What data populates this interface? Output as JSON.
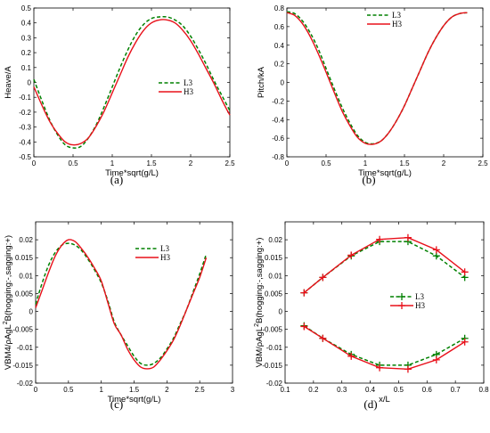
{
  "chart_data": [
    {
      "type": "line",
      "panel_label": "(a)",
      "xlabel": "Time*sqrt(g/L)",
      "ylabel": "Heave/A",
      "xlim": [
        0,
        2.5
      ],
      "ylim": [
        -0.5,
        0.5
      ],
      "xticks": [
        0,
        0.5,
        1,
        1.5,
        2,
        2.5
      ],
      "yticks": [
        -0.5,
        -0.4,
        -0.3,
        -0.2,
        -0.1,
        0,
        0.1,
        0.2,
        0.3,
        0.4,
        0.5
      ],
      "xtick_labels": [
        "0",
        "0.5",
        "1",
        "1.5",
        "2",
        "2.5"
      ],
      "ytick_labels": [
        "-0.5",
        "-0.4",
        "-0.3",
        "-0.2",
        "-0.1",
        "0",
        "0.1",
        "0.2",
        "0.3",
        "0.4",
        "0.5"
      ],
      "grid": false,
      "legend_position": "center-right",
      "series": [
        {
          "name": "L3",
          "color": "#008000",
          "style": "dashed",
          "x": [
            0,
            0.1,
            0.2,
            0.3,
            0.4,
            0.5,
            0.6,
            0.7,
            0.8,
            0.9,
            1.0,
            1.1,
            1.2,
            1.3,
            1.4,
            1.5,
            1.6,
            1.7,
            1.8,
            1.9,
            2.0,
            2.1,
            2.2,
            2.3,
            2.4,
            2.5
          ],
          "y": [
            0.02,
            -0.12,
            -0.25,
            -0.35,
            -0.42,
            -0.44,
            -0.43,
            -0.37,
            -0.28,
            -0.16,
            -0.03,
            0.1,
            0.22,
            0.32,
            0.39,
            0.43,
            0.44,
            0.44,
            0.42,
            0.38,
            0.31,
            0.22,
            0.12,
            0.01,
            -0.09,
            -0.19
          ]
        },
        {
          "name": "H3",
          "color": "#e8101a",
          "style": "solid",
          "x": [
            0,
            0.1,
            0.2,
            0.3,
            0.4,
            0.5,
            0.6,
            0.7,
            0.8,
            0.9,
            1.0,
            1.1,
            1.2,
            1.3,
            1.4,
            1.5,
            1.6,
            1.7,
            1.8,
            1.9,
            2.0,
            2.1,
            2.2,
            2.3,
            2.4,
            2.5
          ],
          "y": [
            -0.03,
            -0.15,
            -0.26,
            -0.34,
            -0.4,
            -0.42,
            -0.41,
            -0.37,
            -0.29,
            -0.19,
            -0.07,
            0.05,
            0.17,
            0.27,
            0.35,
            0.4,
            0.42,
            0.42,
            0.4,
            0.35,
            0.28,
            0.19,
            0.09,
            -0.01,
            -0.12,
            -0.22
          ]
        }
      ]
    },
    {
      "type": "line",
      "panel_label": "(b)",
      "xlabel": "Time*sqrt(g/L)",
      "ylabel": "Pitch/kA",
      "xlim": [
        0,
        2.5
      ],
      "ylim": [
        -0.8,
        0.8
      ],
      "xticks": [
        0,
        0.5,
        1,
        1.5,
        2,
        2.5
      ],
      "yticks": [
        -0.8,
        -0.6,
        -0.4,
        -0.2,
        0,
        0.2,
        0.4,
        0.6,
        0.8
      ],
      "xtick_labels": [
        "0",
        "0.5",
        "1",
        "1.5",
        "2",
        "2.5"
      ],
      "ytick_labels": [
        "-0.8",
        "-0.6",
        "-0.4",
        "-0.2",
        "0",
        "0.2",
        "0.4",
        "0.6",
        "0.8"
      ],
      "grid": false,
      "legend_position": "top-center",
      "series": [
        {
          "name": "L3",
          "color": "#008000",
          "style": "dashed",
          "x": [
            0,
            0.1,
            0.2,
            0.3,
            0.4,
            0.5,
            0.6,
            0.7,
            0.8,
            0.9,
            1.0,
            1.1,
            1.2,
            1.3,
            1.4,
            1.5,
            1.6,
            1.7,
            1.8,
            1.9,
            2.0,
            2.1,
            2.2,
            2.3
          ],
          "y": [
            0.76,
            0.74,
            0.66,
            0.53,
            0.36,
            0.15,
            -0.06,
            -0.26,
            -0.43,
            -0.57,
            -0.645,
            -0.66,
            -0.63,
            -0.54,
            -0.41,
            -0.25,
            -0.06,
            0.13,
            0.32,
            0.48,
            0.61,
            0.7,
            0.74,
            0.75
          ]
        },
        {
          "name": "H3",
          "color": "#e8101a",
          "style": "solid",
          "x": [
            0,
            0.1,
            0.2,
            0.3,
            0.4,
            0.5,
            0.6,
            0.7,
            0.8,
            0.9,
            1.0,
            1.1,
            1.2,
            1.3,
            1.4,
            1.5,
            1.6,
            1.7,
            1.8,
            1.9,
            2.0,
            2.1,
            2.2,
            2.3
          ],
          "y": [
            0.75,
            0.72,
            0.63,
            0.49,
            0.31,
            0.11,
            -0.1,
            -0.3,
            -0.46,
            -0.59,
            -0.655,
            -0.665,
            -0.63,
            -0.54,
            -0.41,
            -0.25,
            -0.06,
            0.13,
            0.32,
            0.48,
            0.61,
            0.7,
            0.74,
            0.75
          ]
        }
      ]
    },
    {
      "type": "line",
      "panel_label": "(c)",
      "xlabel": "Time*sqrt(g/L)",
      "ylabel_parts": [
        "VBM4/ρAgL",
        "2",
        "B(hogging:-,sagging:+)"
      ],
      "xlim": [
        0,
        3
      ],
      "ylim": [
        -0.02,
        0.025
      ],
      "xticks": [
        0,
        0.5,
        1,
        1.5,
        2,
        2.5,
        3
      ],
      "yticks": [
        -0.02,
        -0.015,
        -0.01,
        -0.005,
        0,
        0.005,
        0.01,
        0.015,
        0.02
      ],
      "xtick_labels": [
        "0",
        "0.5",
        "1",
        "1.5",
        "2",
        "2.5",
        "3"
      ],
      "ytick_labels": [
        "-0.02",
        "-0.015",
        "-0.01",
        "-0.005",
        "0",
        "0.005",
        "0.01",
        "0.015",
        "0.02"
      ],
      "grid": false,
      "legend_position": "top-right",
      "series": [
        {
          "name": "L3",
          "color": "#008000",
          "style": "dashed",
          "x": [
            0,
            0.1,
            0.2,
            0.3,
            0.4,
            0.5,
            0.6,
            0.7,
            0.8,
            0.9,
            1.0,
            1.1,
            1.2,
            1.3,
            1.4,
            1.5,
            1.6,
            1.7,
            1.8,
            1.9,
            2.0,
            2.1,
            2.2,
            2.3,
            2.4,
            2.5,
            2.6
          ],
          "y": [
            0.002,
            0.008,
            0.013,
            0.0165,
            0.0185,
            0.019,
            0.0185,
            0.017,
            0.0145,
            0.0115,
            0.008,
            0.003,
            -0.003,
            -0.0065,
            -0.0095,
            -0.0125,
            -0.0145,
            -0.015,
            -0.0145,
            -0.013,
            -0.0105,
            -0.0075,
            -0.0035,
            0.0005,
            0.0055,
            0.0105,
            0.016
          ]
        },
        {
          "name": "H3",
          "color": "#e8101a",
          "style": "solid",
          "x": [
            0,
            0.1,
            0.2,
            0.3,
            0.4,
            0.5,
            0.6,
            0.7,
            0.8,
            0.9,
            1.0,
            1.1,
            1.2,
            1.3,
            1.4,
            1.5,
            1.6,
            1.7,
            1.8,
            1.9,
            2.0,
            2.1,
            2.2,
            2.3,
            2.4,
            2.5,
            2.6
          ],
          "y": [
            0.001,
            0.006,
            0.011,
            0.0155,
            0.0185,
            0.02,
            0.0195,
            0.0175,
            0.015,
            0.012,
            0.0085,
            0.0025,
            -0.0035,
            -0.0065,
            -0.0105,
            -0.0135,
            -0.0155,
            -0.016,
            -0.0155,
            -0.0135,
            -0.011,
            -0.008,
            -0.004,
            0.0005,
            0.005,
            0.0095,
            0.015
          ]
        }
      ]
    },
    {
      "type": "line",
      "panel_label": "(d)",
      "xlabel": "x/L",
      "ylabel_parts": [
        "VBM/ρAgL",
        "2",
        "B(hogging:-,sagging:+)"
      ],
      "xlim": [
        0.1,
        0.8
      ],
      "ylim": [
        -0.02,
        0.025
      ],
      "xticks": [
        0.1,
        0.2,
        0.3,
        0.4,
        0.5,
        0.6,
        0.7,
        0.8
      ],
      "yticks": [
        -0.02,
        -0.015,
        -0.01,
        -0.005,
        0,
        0.005,
        0.01,
        0.015,
        0.02
      ],
      "xtick_labels": [
        "0.1",
        "0.2",
        "0.3",
        "0.4",
        "0.5",
        "0.6",
        "0.7",
        "0.8"
      ],
      "ytick_labels": [
        "-0.02",
        "-0.015",
        "-0.01",
        "-0.005",
        "0",
        "0.005",
        "0.01",
        "0.015",
        "0.02"
      ],
      "grid": false,
      "legend_position": "center-right",
      "series": [
        {
          "name": "L3",
          "color": "#008000",
          "style": "dashed",
          "marker": "+",
          "x": [
            0.167,
            0.233,
            0.333,
            0.433,
            0.533,
            0.633,
            0.733
          ],
          "y": [
            0.0052,
            0.0095,
            0.0155,
            0.0195,
            0.0195,
            0.0155,
            0.0095
          ]
        },
        {
          "name": "L3",
          "color": "#008000",
          "style": "dashed",
          "marker": "+",
          "x": [
            0.167,
            0.233,
            0.333,
            0.433,
            0.533,
            0.633,
            0.733
          ],
          "y": [
            -0.004,
            -0.0075,
            -0.012,
            -0.015,
            -0.015,
            -0.012,
            -0.0075
          ]
        },
        {
          "name": "H3",
          "color": "#e8101a",
          "style": "solid",
          "marker": "+",
          "x": [
            0.167,
            0.233,
            0.333,
            0.433,
            0.533,
            0.633,
            0.733
          ],
          "y": [
            0.0052,
            0.0095,
            0.0157,
            0.0201,
            0.0206,
            0.0172,
            0.011
          ]
        },
        {
          "name": "H3",
          "color": "#e8101a",
          "style": "solid",
          "marker": "+",
          "x": [
            0.167,
            0.233,
            0.333,
            0.433,
            0.533,
            0.633,
            0.733
          ],
          "y": [
            -0.0042,
            -0.0075,
            -0.0125,
            -0.0157,
            -0.0161,
            -0.0135,
            -0.0085
          ]
        }
      ]
    }
  ]
}
